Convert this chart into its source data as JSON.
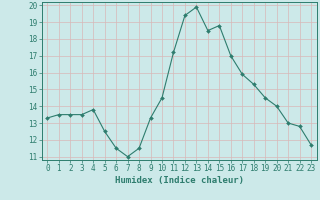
{
  "x": [
    0,
    1,
    2,
    3,
    4,
    5,
    6,
    7,
    8,
    9,
    10,
    11,
    12,
    13,
    14,
    15,
    16,
    17,
    18,
    19,
    20,
    21,
    22,
    23
  ],
  "y": [
    13.3,
    13.5,
    13.5,
    13.5,
    13.8,
    12.5,
    11.5,
    11.0,
    11.5,
    13.3,
    14.5,
    17.2,
    19.4,
    19.9,
    18.5,
    18.8,
    17.0,
    15.9,
    15.3,
    14.5,
    14.0,
    13.0,
    12.8,
    11.7
  ],
  "line_color": "#2e7d6e",
  "marker": "D",
  "marker_size": 2.0,
  "bg_color": "#cce9e9",
  "grid_color": "#d8b8b8",
  "xlabel": "Humidex (Indice chaleur)",
  "xlim": [
    -0.5,
    23.5
  ],
  "ylim": [
    10.8,
    20.2
  ],
  "yticks": [
    11,
    12,
    13,
    14,
    15,
    16,
    17,
    18,
    19,
    20
  ],
  "xticks": [
    0,
    1,
    2,
    3,
    4,
    5,
    6,
    7,
    8,
    9,
    10,
    11,
    12,
    13,
    14,
    15,
    16,
    17,
    18,
    19,
    20,
    21,
    22,
    23
  ],
  "label_fontsize": 6.5,
  "tick_fontsize": 5.5
}
